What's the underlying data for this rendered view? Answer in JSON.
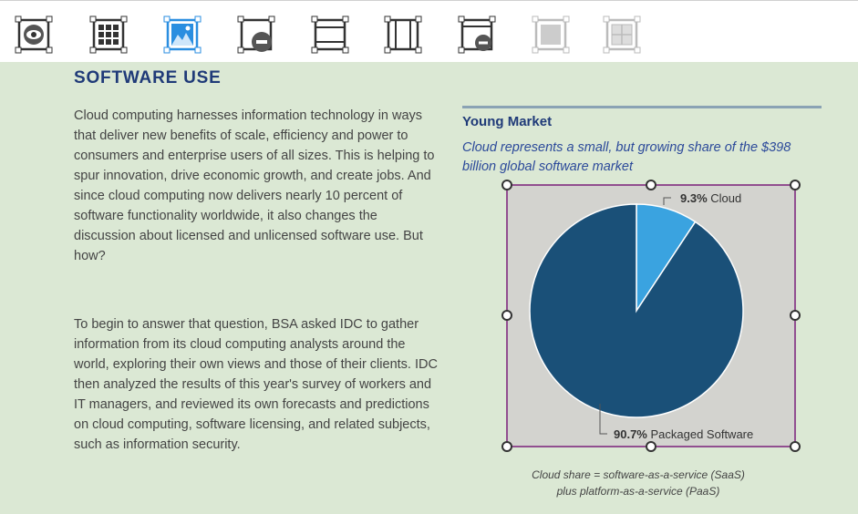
{
  "toolbar": {
    "tools": [
      {
        "icon": "eye-icon",
        "active": false,
        "disabled": false
      },
      {
        "icon": "grid-icon",
        "active": false,
        "disabled": false
      },
      {
        "icon": "image-icon",
        "active": true,
        "disabled": false
      },
      {
        "icon": "frame-remove-icon",
        "active": false,
        "disabled": false
      },
      {
        "icon": "header-footer-frame-icon",
        "active": false,
        "disabled": false
      },
      {
        "icon": "columns-frame-icon",
        "active": false,
        "disabled": false
      },
      {
        "icon": "window-remove-icon",
        "active": false,
        "disabled": false
      },
      {
        "icon": "fill-frame-icon",
        "active": false,
        "disabled": true
      },
      {
        "icon": "grid-frame-icon",
        "active": false,
        "disabled": true
      }
    ]
  },
  "article": {
    "heading": "SOFTWARE USE",
    "paragraph1": "Cloud computing harnesses information technology in ways that deliver new benefits of scale, efficiency and power to consumers and enterprise users of all sizes. This is helping to spur innovation, drive economic growth, and create jobs. And since cloud computing now delivers nearly 10 percent of software functionality worldwide, it also changes the discussion about licensed and unlicensed software use. But how?",
    "paragraph2": "To begin to answer that question, BSA asked IDC to gather information from its cloud computing analysts around the world, exploring their own views and those of their clients. IDC then analyzed the results of this year's survey of workers and IT managers, and reviewed its own forecasts and predictions on cloud computing, software licensing, and related subjects, such as information security."
  },
  "chart_data": {
    "type": "pie",
    "title": "Young Market",
    "subtitle": "Cloud represents a small, but growing share of the $398 billion global software market",
    "slices": [
      {
        "pct_label": "9.3%",
        "name": "Cloud",
        "value": 9.3,
        "color": "#3aa3e0"
      },
      {
        "pct_label": "90.7%",
        "name": "Packaged Software",
        "value": 90.7,
        "color": "#1a5078"
      }
    ],
    "caption_line1": "Cloud share = software-as-a-service (SaaS)",
    "caption_line2": "plus platform-as-a-service (PaaS)"
  },
  "colors": {
    "background": "#dbe8d4",
    "heading": "#1f3a78",
    "selection": "#7a1f7a",
    "chart_bg": "#d3d3cf"
  }
}
